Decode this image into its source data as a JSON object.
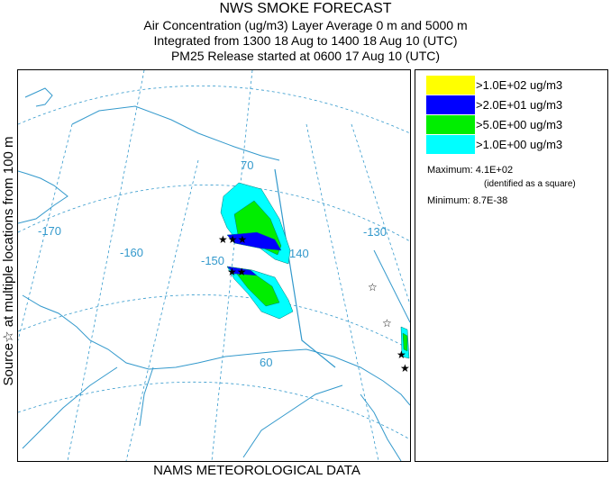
{
  "titles": [
    "NWS SMOKE FORECAST",
    "Air Concentration (ug/m3) Layer Average    0 m and  5000 m",
    "Integrated from 1300 18 Aug to 1400 18 Aug 10 (UTC)",
    "PM25 Release started at 0600 17 Aug 10 (UTC)"
  ],
  "side_label": "Source☆ at multiple locations   from   100 m",
  "footer": "NAMS METEOROLOGICAL DATA",
  "legend": {
    "items": [
      {
        "color": "#ffff00",
        "label": ">1.0E+02 ug/m3"
      },
      {
        "color": "#0000ff",
        "label": ">2.0E+01 ug/m3"
      },
      {
        "color": "#00ee00",
        "label": ">5.0E+00 ug/m3"
      },
      {
        "color": "#00ffff",
        "label": ">1.0E+00 ug/m3"
      }
    ],
    "maximum": "Maximum: 4.1E+02",
    "maximum_note": "(identified as a square)",
    "minimum": "Minimum: 8.7E-38"
  },
  "map": {
    "grid_labels": [
      "-170",
      "-160",
      "-150",
      "140",
      "-130",
      "70",
      "60"
    ],
    "line_color": "#3399cc"
  }
}
